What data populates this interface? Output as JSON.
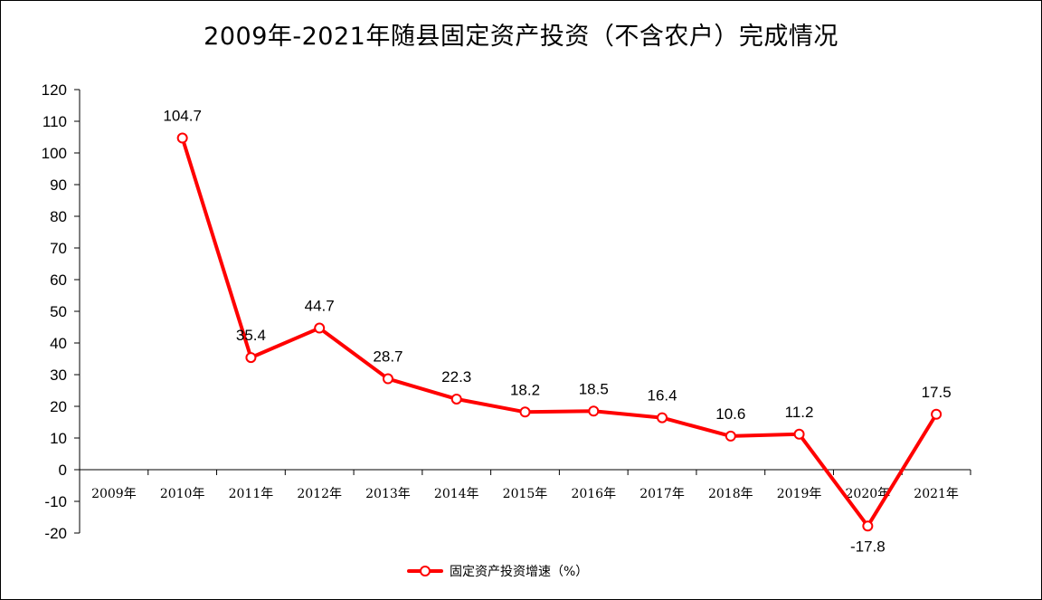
{
  "chart_data": {
    "type": "line",
    "title": "2009年-2021年随县固定资产投资（不含农户）完成情况",
    "categories": [
      "2009年",
      "2010年",
      "2011年",
      "2012年",
      "2013年",
      "2014年",
      "2015年",
      "2016年",
      "2017年",
      "2018年",
      "2019年",
      "2020年",
      "2021年"
    ],
    "series": [
      {
        "name": "固定资产投资增速（%）",
        "color": "#ff0000",
        "values": [
          null,
          104.7,
          35.4,
          44.7,
          28.7,
          22.3,
          18.2,
          18.5,
          16.4,
          10.6,
          11.2,
          -17.8,
          17.5
        ],
        "labels": [
          "",
          "104.7",
          "35.4",
          "44.7",
          "28.7",
          "22.3",
          "18.2",
          "18.5",
          "16.4",
          "10.6",
          "11.2",
          "-17.8",
          "17.5"
        ]
      }
    ],
    "yticks": [
      -20,
      -10,
      0,
      10,
      20,
      30,
      40,
      50,
      60,
      70,
      80,
      90,
      100,
      110,
      120
    ],
    "ylim": [
      -20,
      120
    ],
    "xlabel": "",
    "ylabel": "",
    "grid": false,
    "legend": "bottom"
  }
}
